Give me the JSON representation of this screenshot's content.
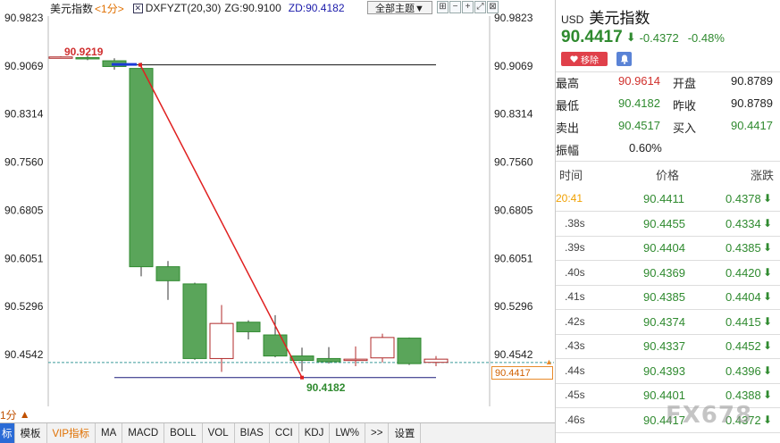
{
  "toolbar": {
    "title": "美元指数",
    "period": "<1分>",
    "indicator": "DXFYZT(20,30)",
    "zg": "ZG:90.9100",
    "zd": "ZD:90.4182",
    "theme_button": "全部主题▼",
    "icons": [
      "grid-icon",
      "minus-icon",
      "plus-icon",
      "expand-icon",
      "close-icon"
    ],
    "icon_glyphs": [
      "⊞",
      "−",
      "+",
      "⤢",
      "⊠"
    ]
  },
  "chart": {
    "y_ticks_left": [
      "90.9823",
      "90.9069",
      "90.8314",
      "90.7560",
      "90.6805",
      "90.6051",
      "90.5296",
      "90.4542"
    ],
    "y_ticks_right": [
      "90.9823",
      "90.9069",
      "90.8314",
      "90.7560",
      "90.6805",
      "90.6051",
      "90.5296",
      "90.4542"
    ],
    "high_label": "90.9219",
    "low_label": "90.4182",
    "current_price": "90.4417",
    "period_tab": "1分",
    "period_tab_arrow": "▲"
  },
  "chart_data": {
    "type": "candlestick",
    "ylim": [
      90.4,
      90.99
    ],
    "candles": [
      {
        "open": 90.921,
        "close": 90.921,
        "high": 90.922,
        "low": 90.92
      },
      {
        "open": 90.92,
        "close": 90.919,
        "high": 90.923,
        "low": 90.916
      },
      {
        "open": 90.915,
        "close": 90.906,
        "high": 90.919,
        "low": 90.901
      },
      {
        "open": 90.903,
        "close": 90.592,
        "high": 90.912,
        "low": 90.577
      },
      {
        "open": 90.592,
        "close": 90.57,
        "high": 90.601,
        "low": 90.54
      },
      {
        "open": 90.565,
        "close": 90.448,
        "high": 90.567,
        "low": 90.446
      },
      {
        "open": 90.448,
        "close": 90.503,
        "high": 90.532,
        "low": 90.427
      },
      {
        "open": 90.505,
        "close": 90.49,
        "high": 90.508,
        "low": 90.478
      },
      {
        "open": 90.485,
        "close": 90.452,
        "high": 90.516,
        "low": 90.45
      },
      {
        "open": 90.452,
        "close": 90.445,
        "high": 90.465,
        "low": 90.428
      },
      {
        "open": 90.448,
        "close": 90.443,
        "high": 90.466,
        "low": 90.44
      },
      {
        "open": 90.445,
        "close": 90.447,
        "high": 90.467,
        "low": 90.436
      },
      {
        "open": 90.449,
        "close": 90.481,
        "high": 90.487,
        "low": 90.442
      },
      {
        "open": 90.48,
        "close": 90.44,
        "high": 90.481,
        "low": 90.438
      },
      {
        "open": 90.442,
        "close": 90.447,
        "high": 90.452,
        "low": 90.436
      }
    ],
    "high_point": {
      "candle": 3,
      "value": 90.9219
    },
    "low_point": {
      "candle": 9,
      "value": 90.4182
    },
    "zg_value": 90.91,
    "zd_value": 90.4182,
    "current_value": 90.4417,
    "colors": {
      "up": "#b02a2a",
      "down": "#2f8a2f",
      "down_fill": "#5aa55a",
      "line": "#e02020",
      "hline_top": "#111111",
      "hline_bottom": "#1a1a7a",
      "current": "#3a9a9a"
    }
  },
  "bottom_tabs": [
    "标",
    "模板",
    "VIP指标",
    "MA",
    "MACD",
    "BOLL",
    "VOL",
    "BIAS",
    "CCI",
    "KDJ",
    "LW%",
    ">>",
    "设置"
  ],
  "quote": {
    "code": "USD",
    "name": "美元指数",
    "price": "90.4417",
    "arrow": "⬇",
    "change": "-0.4372",
    "change_pct": "-0.48%",
    "remove_label": "移除",
    "remove_icon": "heart-icon",
    "bell_icon": "bell-icon",
    "stats": [
      {
        "l1": "最高",
        "v1": "90.9614",
        "c1": "r",
        "l2": "开盘",
        "v2": "90.8789",
        "c2": "k"
      },
      {
        "l1": "最低",
        "v1": "90.4182",
        "c1": "g",
        "l2": "昨收",
        "v2": "90.8789",
        "c2": "k"
      },
      {
        "l1": "卖出",
        "v1": "90.4517",
        "c1": "g",
        "l2": "买入",
        "v2": "90.4417",
        "c2": "g"
      }
    ],
    "amplitude_label": "振幅",
    "amplitude_value": "0.60%",
    "ticks_header": {
      "time": "时间",
      "price": "价格",
      "change": "涨跌"
    },
    "ticks": [
      {
        "time": "20:41",
        "price": "90.4411",
        "change": "0.4378",
        "highlight": true
      },
      {
        "time": ".38s",
        "price": "90.4455",
        "change": "0.4334"
      },
      {
        "time": ".39s",
        "price": "90.4404",
        "change": "0.4385"
      },
      {
        "time": ".40s",
        "price": "90.4369",
        "change": "0.4420"
      },
      {
        "time": ".41s",
        "price": "90.4385",
        "change": "0.4404"
      },
      {
        "time": ".42s",
        "price": "90.4374",
        "change": "0.4415"
      },
      {
        "time": ".43s",
        "price": "90.4337",
        "change": "0.4452"
      },
      {
        "time": ".44s",
        "price": "90.4393",
        "change": "0.4396"
      },
      {
        "time": ".45s",
        "price": "90.4401",
        "change": "0.4388"
      },
      {
        "time": ".46s",
        "price": "90.4417",
        "change": "0.4372"
      }
    ],
    "tick_arrow": "⬇"
  },
  "watermark": "FX678"
}
